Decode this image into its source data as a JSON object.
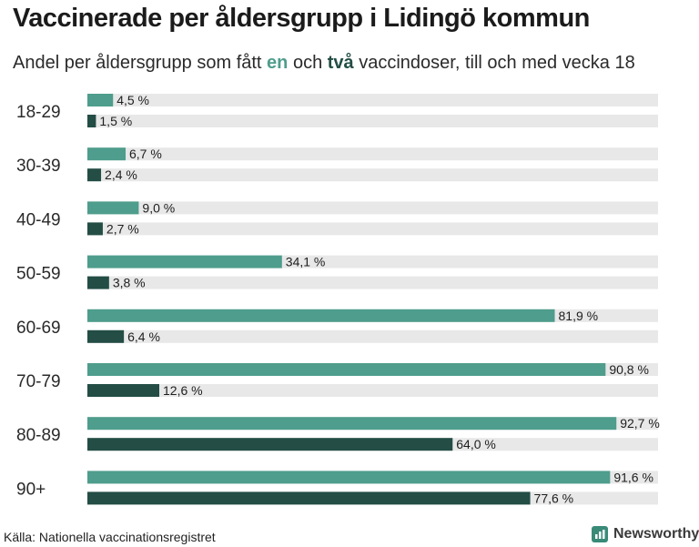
{
  "header": {
    "title": "Vaccinerade per åldersgrupp i Lidingö kommun",
    "subtitle_pre": "Andel per åldersgrupp som fått ",
    "subtitle_kw1": "en",
    "subtitle_mid": " och ",
    "subtitle_kw2": "två",
    "subtitle_post": " vaccindoser, till och med vecka 18"
  },
  "footer": {
    "source": "Källa: Nationella vaccinationsregistret",
    "brand": "Newsworthy",
    "brand_icon": "bar-chart-icon"
  },
  "colors": {
    "one_dose": "#4f9d8c",
    "two_doses": "#234d45",
    "track": "#e8e8e8",
    "brand_icon": "#3a8a78"
  },
  "chart_data": {
    "type": "bar",
    "orientation": "horizontal",
    "categories": [
      "18-29",
      "30-39",
      "40-49",
      "50-59",
      "60-69",
      "70-79",
      "80-89",
      "90+"
    ],
    "series": [
      {
        "key": "one_dose",
        "values": [
          4.5,
          6.7,
          9.0,
          34.1,
          81.9,
          90.8,
          92.7,
          91.6
        ],
        "labels": [
          "4,5 %",
          "6,7 %",
          "9,0 %",
          "34,1 %",
          "81,9 %",
          "90,8 %",
          "92,7 %",
          "91,6 %"
        ]
      },
      {
        "key": "two_doses",
        "values": [
          1.5,
          2.4,
          2.7,
          3.8,
          6.4,
          12.6,
          64.0,
          77.6
        ],
        "labels": [
          "1,5 %",
          "2,4 %",
          "2,7 %",
          "3,8 %",
          "6,4 %",
          "12,6 %",
          "64,0 %",
          "77,6 %"
        ]
      }
    ],
    "xlim": [
      0,
      100
    ],
    "grid": false,
    "legend": "in subtitle"
  }
}
